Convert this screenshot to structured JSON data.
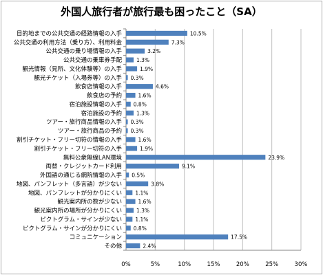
{
  "chart_data": {
    "type": "bar",
    "orientation": "horizontal",
    "title": "外国人旅行者が旅行最も困ったこと（SA）",
    "categories": [
      "目的地までの公共交通の経路情報の入手",
      "公共交通の利用方法（乗り方）、利用料金",
      "公共交通の乗り場情報の入手",
      "公共交通の乗車券手配",
      "観光情報（見所、文化体験等）の入手",
      "観光チケット（入場券等）の入手",
      "飲食店情報の入手",
      "飲食店の予約",
      "宿泊施設情報の入手",
      "宿泊施設の予約",
      "ツアー・旅行商品情報の入手",
      "ツアー・旅行商品の予約",
      "割引チケット・フリー切符の情報の入手",
      "割引チケット・フリー切符の入手",
      "無料公衆無線LAN環境",
      "両替・クレジットカード利用",
      "外国語の通じる網院情報の入手",
      "地図、パンフレット（多言語）が少ない",
      "地図、パンフレットが分かりにくい",
      "観光案内所の数が少ない",
      "観光案内所の場所が分かりにくい",
      "ピクトグラム・サインが少ない",
      "ピクトグラム・サインが分かりにくい",
      "コミュニケーション",
      "その他"
    ],
    "values": [
      10.5,
      7.3,
      3.2,
      1.3,
      1.9,
      0.3,
      4.6,
      1.6,
      0.8,
      1.3,
      0.3,
      0.3,
      1.6,
      1.9,
      23.9,
      9.1,
      0.5,
      3.8,
      1.1,
      1.6,
      1.3,
      1.1,
      0.8,
      17.5,
      2.4
    ],
    "value_labels": [
      "10.5%",
      "7.3%",
      "3.2%",
      "1.3%",
      "1.9%",
      "0.3%",
      "4.6%",
      "1.6%",
      "0.8%",
      "1.3%",
      "0.3%",
      "0.3%",
      "1.6%",
      "1.9%",
      "23.9%",
      "9.1%",
      "0.5%",
      "3.8%",
      "1.1%",
      "1.6%",
      "1.3%",
      "1.1%",
      "0.8%",
      "17.5%",
      "2.4%"
    ],
    "xlim": [
      0,
      30
    ],
    "ticks": [
      0,
      5,
      10,
      15,
      20,
      25,
      30
    ],
    "tick_labels": [
      "0%",
      "5%",
      "10%",
      "15%",
      "20%",
      "25%",
      "30%"
    ],
    "grid": true,
    "legend": "none",
    "colors": {
      "bar": "#4f81bd",
      "grid": "#bfbfbf",
      "axis": "#868686"
    }
  }
}
